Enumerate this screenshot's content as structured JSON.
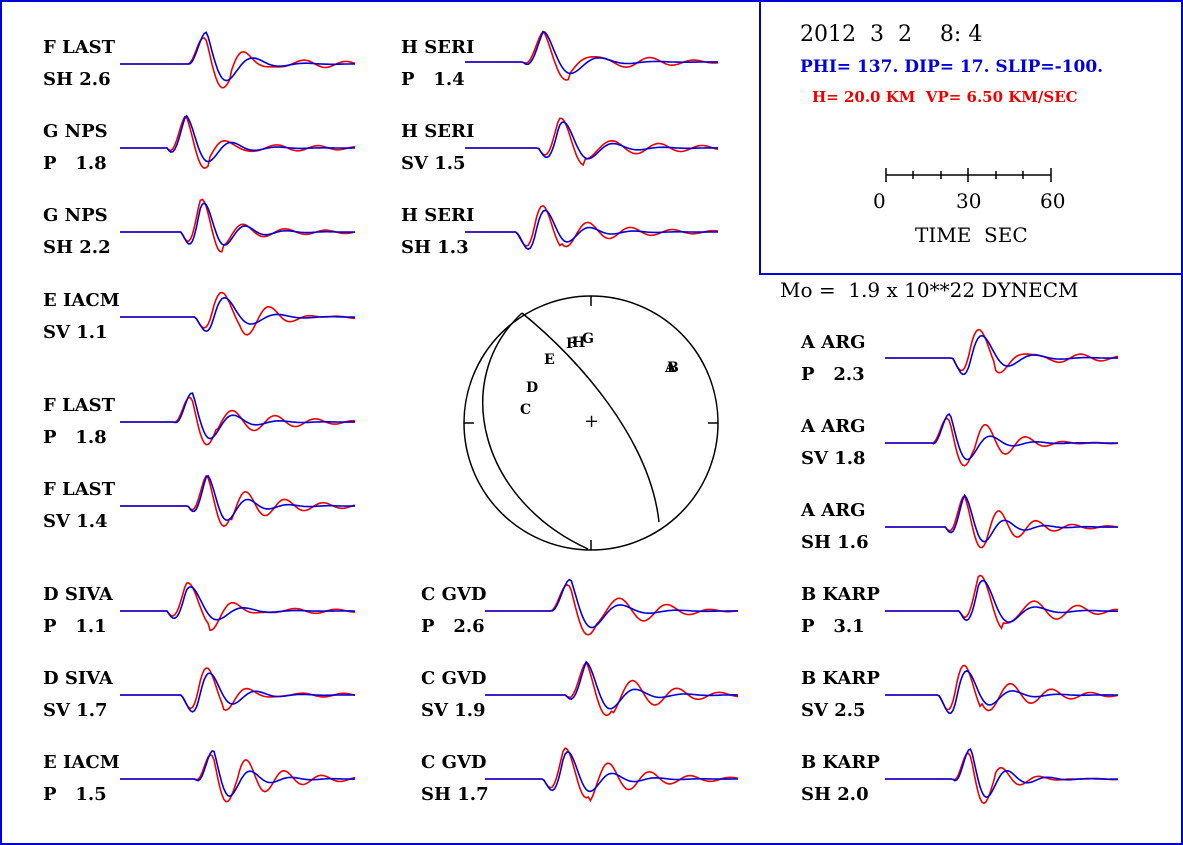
{
  "header": {
    "date": "2012  3  2    8: 4",
    "params": "PHI= 137. DIP= 17. SLIP=-100.",
    "depth": "H= 20.0 KM  VP= 6.50 KM/SEC",
    "scale_ticks": [
      "0",
      "30",
      "60"
    ],
    "scale_label": "TIME  SEC",
    "moment": "Mo =  1.9 x 10**22 DYNECM"
  },
  "colors": {
    "observed": "#0000dd",
    "synthetic": "#ee0000",
    "frame": "#0000dd"
  },
  "chart_data": [
    {
      "type": "line",
      "station": "F LAST",
      "component": "SH",
      "amplitude": "2.6",
      "label_line1": "F LAST",
      "label_line2": "SH 2.6"
    },
    {
      "type": "line",
      "station": "G NPS",
      "component": "P",
      "amplitude": "1.8",
      "label_line1": "G NPS",
      "label_line2": "P   1.8"
    },
    {
      "type": "line",
      "station": "G NPS",
      "component": "SH",
      "amplitude": "2.2",
      "label_line1": "G NPS",
      "label_line2": "SH 2.2"
    },
    {
      "type": "line",
      "station": "E IACM",
      "component": "SV",
      "amplitude": "1.1",
      "label_line1": "E IACM",
      "label_line2": "SV 1.1"
    },
    {
      "type": "line",
      "station": "F LAST",
      "component": "P",
      "amplitude": "1.8",
      "label_line1": "F LAST",
      "label_line2": "P   1.8"
    },
    {
      "type": "line",
      "station": "F LAST",
      "component": "SV",
      "amplitude": "1.4",
      "label_line1": "F LAST",
      "label_line2": "SV 1.4"
    },
    {
      "type": "line",
      "station": "D SIVA",
      "component": "P",
      "amplitude": "1.1",
      "label_line1": "D SIVA",
      "label_line2": "P   1.1"
    },
    {
      "type": "line",
      "station": "D SIVA",
      "component": "SV",
      "amplitude": "1.7",
      "label_line1": "D SIVA",
      "label_line2": "SV 1.7"
    },
    {
      "type": "line",
      "station": "E IACM",
      "component": "P",
      "amplitude": "1.5",
      "label_line1": "E IACM",
      "label_line2": "P   1.5"
    },
    {
      "type": "line",
      "station": "H SERI",
      "component": "P",
      "amplitude": "1.4",
      "label_line1": "H SERI",
      "label_line2": "P   1.4"
    },
    {
      "type": "line",
      "station": "H SERI",
      "component": "SV",
      "amplitude": "1.5",
      "label_line1": "H SERI",
      "label_line2": "SV 1.5"
    },
    {
      "type": "line",
      "station": "H SERI",
      "component": "SH",
      "amplitude": "1.3",
      "label_line1": "H SERI",
      "label_line2": "SH 1.3"
    },
    {
      "type": "line",
      "station": "C GVD",
      "component": "P",
      "amplitude": "2.6",
      "label_line1": "C GVD",
      "label_line2": "P   2.6"
    },
    {
      "type": "line",
      "station": "C GVD",
      "component": "SV",
      "amplitude": "1.9",
      "label_line1": "C GVD",
      "label_line2": "SV 1.9"
    },
    {
      "type": "line",
      "station": "C GVD",
      "component": "SH",
      "amplitude": "1.7",
      "label_line1": "C GVD",
      "label_line2": "SH 1.7"
    },
    {
      "type": "line",
      "station": "A ARG",
      "component": "P",
      "amplitude": "2.3",
      "label_line1": "A ARG",
      "label_line2": "P   2.3"
    },
    {
      "type": "line",
      "station": "A ARG",
      "component": "SV",
      "amplitude": "1.8",
      "label_line1": "A ARG",
      "label_line2": "SV 1.8"
    },
    {
      "type": "line",
      "station": "A ARG",
      "component": "SH",
      "amplitude": "1.6",
      "label_line1": "A ARG",
      "label_line2": "SH 1.6"
    },
    {
      "type": "line",
      "station": "B KARP",
      "component": "P",
      "amplitude": "3.1",
      "label_line1": "B KARP",
      "label_line2": "P   3.1"
    },
    {
      "type": "line",
      "station": "B KARP",
      "component": "SV",
      "amplitude": "2.5",
      "label_line1": "B KARP",
      "label_line2": "SV 2.5"
    },
    {
      "type": "line",
      "station": "B KARP",
      "component": "SH",
      "amplitude": "2.0",
      "label_line1": "B KARP",
      "label_line2": "SH 2.0"
    }
  ],
  "focal_mechanism": {
    "station_marks": [
      "A",
      "B",
      "C",
      "D",
      "E",
      "F",
      "G",
      "H"
    ],
    "center_mark": "+"
  }
}
